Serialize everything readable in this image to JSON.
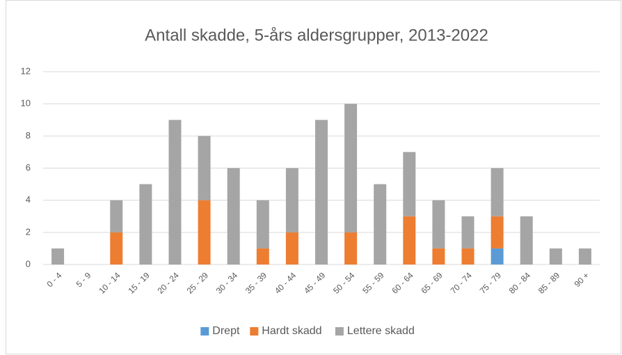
{
  "chart_data": {
    "type": "stacked_bar",
    "title": "Antall skadde, 5-års aldersgrupper, 2013-2022",
    "categories": [
      "0 - 4",
      "5 - 9",
      "10 - 14",
      "15 - 19",
      "20 - 24",
      "25 - 29",
      "30 - 34",
      "35 - 39",
      "40 - 44",
      "45 - 49",
      "50 - 54",
      "55 - 59",
      "60 - 64",
      "65 - 69",
      "70 - 74",
      "75 - 79",
      "80 - 84",
      "85 - 89",
      "90 +"
    ],
    "series": [
      {
        "name": "Drept",
        "color": "#5b9bd5",
        "values": [
          0,
          0,
          0,
          0,
          0,
          0,
          0,
          0,
          0,
          0,
          0,
          0,
          0,
          0,
          0,
          1,
          0,
          0,
          0
        ]
      },
      {
        "name": "Hardt skadd",
        "color": "#ed7d31",
        "values": [
          0,
          0,
          2,
          0,
          0,
          4,
          0,
          1,
          2,
          0,
          2,
          0,
          3,
          1,
          1,
          2,
          0,
          0,
          0
        ]
      },
      {
        "name": "Lettere skadd",
        "color": "#a5a5a5",
        "values": [
          1,
          0,
          2,
          5,
          9,
          4,
          6,
          3,
          4,
          9,
          8,
          5,
          4,
          3,
          2,
          3,
          3,
          1,
          1
        ]
      }
    ],
    "ylim": [
      0,
      12
    ],
    "yticks": [
      0,
      2,
      4,
      6,
      8,
      10,
      12
    ],
    "grid": true,
    "legend": "bottom"
  }
}
